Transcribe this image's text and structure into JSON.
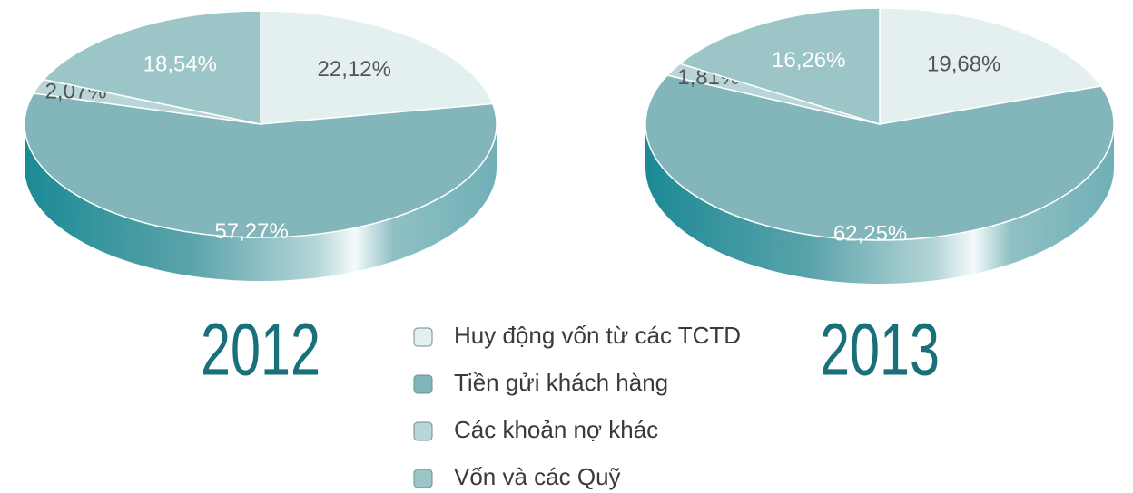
{
  "chart_data": [
    {
      "type": "pie",
      "title": "2012",
      "categories": [
        "Huy động vốn từ các TCTD",
        "Tiền gửi khách hàng",
        "Các khoản nợ khác",
        "Vốn và các Quỹ"
      ],
      "values": [
        22.12,
        57.27,
        2.07,
        18.54
      ],
      "value_labels": [
        "22,12%",
        "57,27%",
        "2,07%",
        "18,54%"
      ],
      "colors": [
        "#e4f0f0",
        "#82b6bb",
        "#b8d5d7",
        "#9cc5c8"
      ]
    },
    {
      "type": "pie",
      "title": "2013",
      "values": [
        19.68,
        62.25,
        1.81,
        16.26
      ],
      "value_labels": [
        "19,68%",
        "62,25%",
        "1,81%",
        "16,26%"
      ],
      "colors": [
        "#e4f0f0",
        "#82b6bb",
        "#b8d5d7",
        "#9cc5c8"
      ]
    }
  ]
}
